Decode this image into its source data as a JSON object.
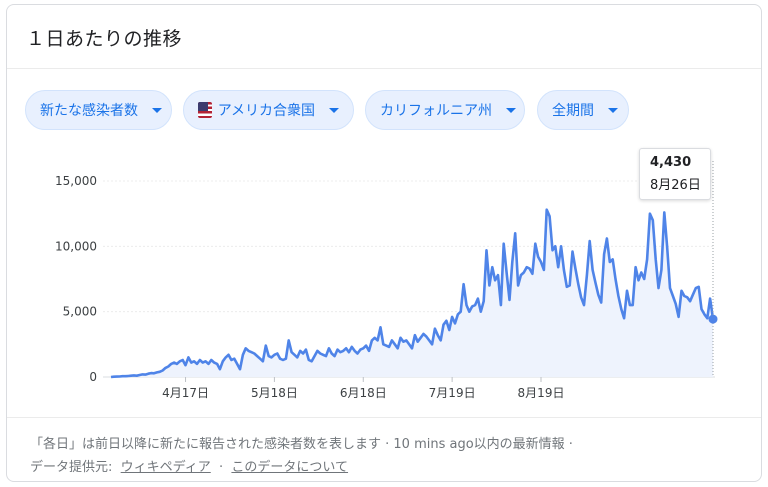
{
  "header": {
    "title": "１日あたりの推移"
  },
  "filters": [
    {
      "label": "新たな感染者数"
    },
    {
      "label": "アメリカ合衆国"
    },
    {
      "label": "カリフォルニア州"
    },
    {
      "label": "全期間"
    }
  ],
  "tooltip": {
    "value": "4,430",
    "date": "8月26日"
  },
  "footer": {
    "note": "「各日」は前日以降に新たに報告された感染者数を表します · 10 mins ago以内の最新情報 ·",
    "source_label": "データ提供元:",
    "source_link": "ウィキペディア",
    "sep": "·",
    "about_link": "このデータについて"
  },
  "colors": {
    "line": "#4f84e8",
    "area": "#eef3fd",
    "accent": "#1a73e8",
    "chip_bg": "#e8f0fe"
  },
  "chart_data": {
    "type": "line",
    "title": "",
    "xlabel": "",
    "ylabel": "",
    "ylim": [
      0,
      15000
    ],
    "yticks": [
      0,
      5000,
      10000,
      15000
    ],
    "ytick_labels": [
      "0",
      "5,000",
      "10,000",
      "15,000"
    ],
    "xticks": [
      "4月17日",
      "5月18日",
      "6月18日",
      "7月19日",
      "8月19日"
    ],
    "xtick_days": [
      48,
      79,
      110,
      141,
      172
    ],
    "x_start_day": 22,
    "grid": true,
    "series": [
      {
        "values": [
          0,
          20,
          30,
          40,
          60,
          60,
          80,
          100,
          120,
          100,
          150,
          200,
          180,
          250,
          300,
          280,
          350,
          400,
          500,
          700,
          800,
          1000,
          1100,
          1000,
          1200,
          1300,
          900,
          1500,
          1100,
          1200,
          1000,
          1300,
          1100,
          1200,
          1000,
          1300,
          1100,
          1000,
          600,
          1200,
          1500,
          1700,
          1300,
          1400,
          1000,
          600,
          1700,
          2200,
          2000,
          1900,
          1800,
          1600,
          1400,
          1200,
          2400,
          1600,
          1500,
          1700,
          1800,
          1400,
          1300,
          1400,
          2800,
          1900,
          1700,
          1500,
          2000,
          1800,
          2100,
          1300,
          1200,
          1600,
          2000,
          1800,
          1700,
          1600,
          2200,
          1800,
          1600,
          2100,
          1900,
          2000,
          2200,
          1900,
          2300,
          2000,
          1800,
          2100,
          2200,
          2400,
          2000,
          2800,
          3000,
          2800,
          3800,
          2500,
          2400,
          2300,
          2800,
          2500,
          2200,
          3000,
          2700,
          2800,
          2500,
          2200,
          3200,
          2700,
          3000,
          3300,
          3100,
          2800,
          2500,
          3700,
          3200,
          2800,
          4000,
          4300,
          3600,
          4600,
          4100,
          4800,
          5000,
          7100,
          5500,
          5000,
          5400,
          5500,
          6000,
          5000,
          5800,
          9700,
          7000,
          8400,
          7400,
          7800,
          5500,
          10200,
          8000,
          5900,
          8800,
          11000,
          7000,
          7800,
          8000,
          8400,
          8300,
          7900,
          10200,
          9200,
          8800,
          8200,
          12800,
          12300,
          9700,
          10000,
          8400,
          10000,
          8200,
          6900,
          7000,
          9600,
          8300,
          7100,
          6100,
          5500,
          7800,
          10400,
          8200,
          7200,
          6300,
          5700,
          9400,
          10600,
          8800,
          9000,
          7500,
          6200,
          5200,
          4500,
          6600,
          5500,
          5500,
          8400,
          7400,
          8000,
          7500,
          9000,
          12500,
          12000,
          9000,
          6800,
          8200,
          12600,
          10000,
          6800,
          6200,
          5600,
          4600,
          6600,
          6200,
          6100,
          5800,
          6300,
          6800,
          6900,
          5200,
          4800,
          4500,
          6000,
          4430
        ]
      }
    ]
  }
}
